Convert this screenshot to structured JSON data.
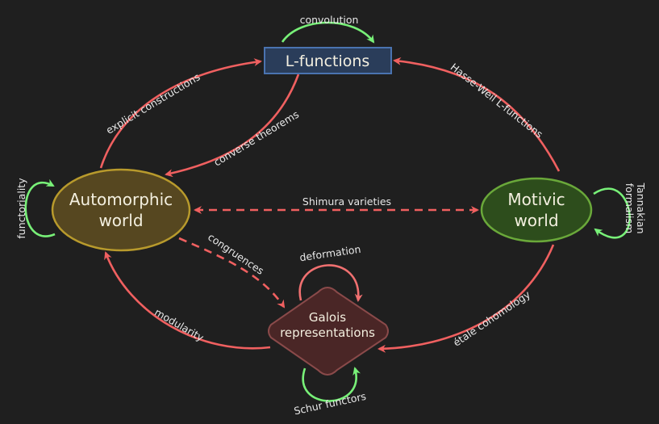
{
  "colors": {
    "background": "#1f1f1f",
    "red_arrow": "#f06060",
    "green_arrow": "#78f078",
    "lfunc_fill": "#2a3d5a",
    "lfunc_stroke": "#4a73b0",
    "automorphic_fill": "#564720",
    "automorphic_stroke": "#b89a2c",
    "motivic_fill": "#2d4d1c",
    "motivic_stroke": "#6aa83a",
    "galois_fill": "#4a2626",
    "galois_stroke": "#8a4a4a",
    "node_text": "#f4f0e0",
    "edge_text": "#e8e8e8"
  },
  "nodes": {
    "lfunctions": "L-functions",
    "automorphic_line1": "Automorphic",
    "automorphic_line2": "world",
    "motivic_line1": "Motivic",
    "motivic_line2": "world",
    "galois_line1": "Galois",
    "galois_line2": "representations"
  },
  "edges": {
    "convolution": "convolution",
    "explicit_constructions": "explicit constructions",
    "converse_theorems": "converse theorems",
    "hasse_weil": "Hasse-Weil L-functions",
    "shimura": "Shimura varieties",
    "functoriality": "functoriality",
    "tannakian_line1": "Tannakian",
    "tannakian_line2": "formalism",
    "congruences": "congruences",
    "deformation": "deformation",
    "modularity": "modularity",
    "etale": "étale cohomology",
    "schur": "Schur functors"
  }
}
